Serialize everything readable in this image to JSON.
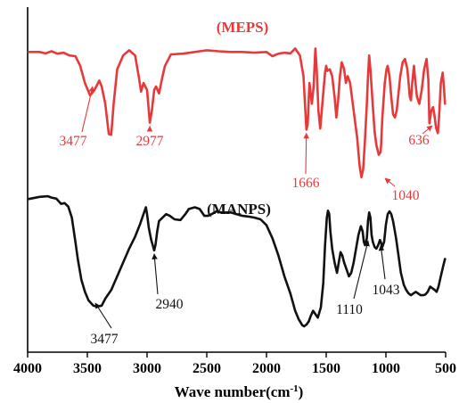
{
  "chart_data": {
    "type": "line",
    "title": "",
    "xlabel_main": "Wave number(cm",
    "xlabel_sup": "-1",
    "xlabel_close": ")",
    "ylabel": "",
    "xlim": [
      4000,
      500
    ],
    "x_reversed": true,
    "x_ticks": [
      4000,
      3500,
      3000,
      2500,
      2000,
      1500,
      1000,
      500
    ],
    "x_tick_labels": [
      "4000",
      "3500",
      "3000",
      "2500",
      "2000",
      "1500",
      "1000",
      "500"
    ],
    "ylim": [
      0,
      100
    ],
    "y_ticks_shown": false,
    "grid": false,
    "series": [
      {
        "name": "(MEPS)",
        "color": "#e8393a",
        "points": [
          [
            3990,
            87
          ],
          [
            3900,
            87
          ],
          [
            3850,
            86.6
          ],
          [
            3800,
            87.2
          ],
          [
            3750,
            86.5
          ],
          [
            3700,
            86.8
          ],
          [
            3650,
            86
          ],
          [
            3600,
            85.8
          ],
          [
            3560,
            83
          ],
          [
            3520,
            78
          ],
          [
            3477,
            74.4
          ],
          [
            3440,
            76
          ],
          [
            3400,
            78.7
          ],
          [
            3380,
            77
          ],
          [
            3350,
            72
          ],
          [
            3320,
            63.2
          ],
          [
            3300,
            63
          ],
          [
            3280,
            72
          ],
          [
            3250,
            82
          ],
          [
            3200,
            86
          ],
          [
            3150,
            87.5
          ],
          [
            3100,
            86
          ],
          [
            3070,
            80
          ],
          [
            3050,
            75.5
          ],
          [
            3030,
            78
          ],
          [
            3000,
            76
          ],
          [
            2977,
            66.5
          ],
          [
            2960,
            70
          ],
          [
            2940,
            76
          ],
          [
            2925,
            77
          ],
          [
            2900,
            75
          ],
          [
            2870,
            80
          ],
          [
            2850,
            83
          ],
          [
            2800,
            86.3
          ],
          [
            2700,
            86.5
          ],
          [
            2600,
            87
          ],
          [
            2500,
            87.5
          ],
          [
            2400,
            87.2
          ],
          [
            2300,
            87
          ],
          [
            2200,
            87
          ],
          [
            2100,
            86.8
          ],
          [
            2000,
            87
          ],
          [
            1950,
            85.8
          ],
          [
            1900,
            86.5
          ],
          [
            1850,
            86.8
          ],
          [
            1800,
            86.6
          ],
          [
            1760,
            88
          ],
          [
            1720,
            86
          ],
          [
            1690,
            80
          ],
          [
            1675,
            70
          ],
          [
            1666,
            64.5
          ],
          [
            1655,
            66
          ],
          [
            1640,
            78
          ],
          [
            1620,
            72
          ],
          [
            1605,
            77
          ],
          [
            1595,
            85
          ],
          [
            1590,
            88
          ],
          [
            1580,
            82
          ],
          [
            1565,
            70
          ],
          [
            1550,
            64.8
          ],
          [
            1530,
            73
          ],
          [
            1510,
            81
          ],
          [
            1500,
            83
          ],
          [
            1490,
            81.5
          ],
          [
            1470,
            82
          ],
          [
            1450,
            80
          ],
          [
            1430,
            74
          ],
          [
            1415,
            68
          ],
          [
            1400,
            73
          ],
          [
            1385,
            80
          ],
          [
            1370,
            84
          ],
          [
            1350,
            82
          ],
          [
            1335,
            78
          ],
          [
            1320,
            80
          ],
          [
            1300,
            78
          ],
          [
            1270,
            70
          ],
          [
            1240,
            62
          ],
          [
            1220,
            54
          ],
          [
            1205,
            50.7
          ],
          [
            1190,
            53
          ],
          [
            1175,
            62
          ],
          [
            1160,
            72
          ],
          [
            1150,
            80
          ],
          [
            1140,
            86
          ],
          [
            1130,
            82
          ],
          [
            1115,
            74
          ],
          [
            1095,
            64
          ],
          [
            1080,
            60
          ],
          [
            1060,
            57.2
          ],
          [
            1045,
            58
          ],
          [
            1040,
            60
          ],
          [
            1030,
            68
          ],
          [
            1010,
            78
          ],
          [
            995,
            82
          ],
          [
            985,
            83
          ],
          [
            970,
            80
          ],
          [
            955,
            74
          ],
          [
            940,
            69
          ],
          [
            925,
            68
          ],
          [
            910,
            70
          ],
          [
            895,
            75
          ],
          [
            880,
            80
          ],
          [
            860,
            84
          ],
          [
            840,
            85
          ],
          [
            820,
            82
          ],
          [
            800,
            74
          ],
          [
            790,
            73
          ],
          [
            780,
            78
          ],
          [
            765,
            83
          ],
          [
            755,
            79
          ],
          [
            740,
            74
          ],
          [
            720,
            72
          ],
          [
            700,
            76
          ],
          [
            680,
            82
          ],
          [
            660,
            85
          ],
          [
            645,
            79
          ],
          [
            636,
            66.3
          ],
          [
            620,
            70
          ],
          [
            605,
            71
          ],
          [
            595,
            69
          ],
          [
            580,
            65
          ],
          [
            565,
            63.5
          ],
          [
            555,
            68
          ],
          [
            540,
            78
          ],
          [
            525,
            81
          ],
          [
            515,
            77
          ],
          [
            505,
            72
          ]
        ]
      },
      {
        "name": "(MANPS)",
        "color": "#111111",
        "points": [
          [
            3990,
            44.4
          ],
          [
            3900,
            45
          ],
          [
            3830,
            45.2
          ],
          [
            3800,
            44.8
          ],
          [
            3760,
            44.5
          ],
          [
            3720,
            43
          ],
          [
            3690,
            43.2
          ],
          [
            3660,
            42.2
          ],
          [
            3630,
            39
          ],
          [
            3600,
            32
          ],
          [
            3580,
            27
          ],
          [
            3550,
            21
          ],
          [
            3520,
            17.5
          ],
          [
            3490,
            15
          ],
          [
            3450,
            13.5
          ],
          [
            3420,
            13.2
          ],
          [
            3380,
            13.5
          ],
          [
            3350,
            15.5
          ],
          [
            3300,
            18
          ],
          [
            3250,
            22
          ],
          [
            3200,
            26
          ],
          [
            3150,
            30
          ],
          [
            3100,
            33.5
          ],
          [
            3060,
            37
          ],
          [
            3030,
            40
          ],
          [
            3010,
            42
          ],
          [
            3000,
            40
          ],
          [
            2985,
            36
          ],
          [
            2965,
            32.5
          ],
          [
            2940,
            29.5
          ],
          [
            2930,
            31
          ],
          [
            2915,
            35
          ],
          [
            2900,
            38
          ],
          [
            2870,
            39
          ],
          [
            2840,
            40
          ],
          [
            2810,
            39.5
          ],
          [
            2770,
            38.5
          ],
          [
            2720,
            38.3
          ],
          [
            2680,
            40
          ],
          [
            2650,
            41.5
          ],
          [
            2600,
            42
          ],
          [
            2560,
            41.5
          ],
          [
            2520,
            39.5
          ],
          [
            2490,
            39.5
          ],
          [
            2460,
            40
          ],
          [
            2420,
            40.8
          ],
          [
            2380,
            40.5
          ],
          [
            2340,
            40.5
          ],
          [
            2300,
            40.5
          ],
          [
            2250,
            40
          ],
          [
            2200,
            39.5
          ],
          [
            2150,
            39.3
          ],
          [
            2100,
            39
          ],
          [
            2050,
            38.5
          ],
          [
            2000,
            36.8
          ],
          [
            1950,
            33
          ],
          [
            1900,
            28
          ],
          [
            1850,
            22
          ],
          [
            1800,
            17
          ],
          [
            1760,
            12
          ],
          [
            1730,
            9.5
          ],
          [
            1700,
            7.8
          ],
          [
            1685,
            7.5
          ],
          [
            1665,
            8
          ],
          [
            1645,
            9
          ],
          [
            1630,
            10.5
          ],
          [
            1610,
            12
          ],
          [
            1590,
            11
          ],
          [
            1570,
            10
          ],
          [
            1545,
            13
          ],
          [
            1525,
            20
          ],
          [
            1510,
            31
          ],
          [
            1495,
            39
          ],
          [
            1485,
            41
          ],
          [
            1475,
            40
          ],
          [
            1465,
            35
          ],
          [
            1450,
            30
          ],
          [
            1430,
            26
          ],
          [
            1410,
            23
          ],
          [
            1395,
            26
          ],
          [
            1380,
            29
          ],
          [
            1365,
            28
          ],
          [
            1350,
            26
          ],
          [
            1330,
            24
          ],
          [
            1310,
            22
          ],
          [
            1290,
            23
          ],
          [
            1270,
            26
          ],
          [
            1250,
            30
          ],
          [
            1230,
            34
          ],
          [
            1210,
            36.5
          ],
          [
            1195,
            35
          ],
          [
            1185,
            32
          ],
          [
            1175,
            31
          ],
          [
            1160,
            33
          ],
          [
            1150,
            38
          ],
          [
            1140,
            40.5
          ],
          [
            1130,
            39
          ],
          [
            1120,
            34
          ],
          [
            1110,
            32
          ],
          [
            1095,
            30.5
          ],
          [
            1080,
            30
          ],
          [
            1065,
            31
          ],
          [
            1050,
            32.5
          ],
          [
            1043,
            32
          ],
          [
            1030,
            30.5
          ],
          [
            1015,
            32
          ],
          [
            1000,
            37
          ],
          [
            985,
            40
          ],
          [
            970,
            40.8
          ],
          [
            955,
            40
          ],
          [
            940,
            38
          ],
          [
            930,
            36
          ],
          [
            915,
            33
          ],
          [
            895,
            28
          ],
          [
            875,
            23
          ],
          [
            850,
            19.5
          ],
          [
            830,
            18
          ],
          [
            810,
            17
          ],
          [
            790,
            16.5
          ],
          [
            770,
            17
          ],
          [
            750,
            17.5
          ],
          [
            730,
            17
          ],
          [
            710,
            16.5
          ],
          [
            690,
            16.5
          ],
          [
            670,
            16.7
          ],
          [
            650,
            17.5
          ],
          [
            630,
            19
          ],
          [
            610,
            18.5
          ],
          [
            590,
            18
          ],
          [
            575,
            17.5
          ],
          [
            560,
            19
          ],
          [
            540,
            22
          ],
          [
            520,
            25
          ],
          [
            505,
            27
          ]
        ]
      }
    ],
    "annotations": [
      {
        "text": "3477",
        "series": 0,
        "x": 3477
      },
      {
        "text": "2977",
        "series": 0,
        "x": 2977
      },
      {
        "text": "1666",
        "series": 0,
        "x": 1666
      },
      {
        "text": "1040",
        "series": 0,
        "x": 1040
      },
      {
        "text": "636",
        "series": 0,
        "x": 636
      },
      {
        "text": "3477",
        "series": 1,
        "x": 3477
      },
      {
        "text": "2940",
        "series": 1,
        "x": 2940
      },
      {
        "text": "1110",
        "series": 1,
        "x": 1110
      },
      {
        "text": "1043",
        "series": 1,
        "x": 1043
      }
    ]
  }
}
